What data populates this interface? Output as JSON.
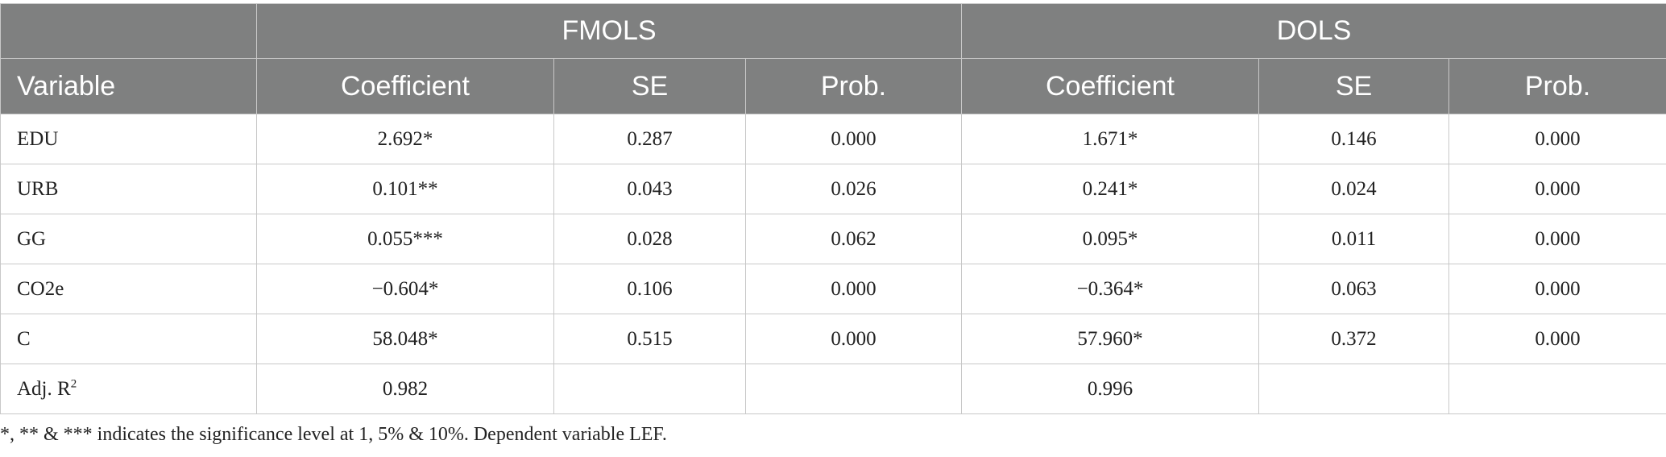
{
  "table": {
    "groups": [
      {
        "label": ""
      },
      {
        "label": "FMOLS"
      },
      {
        "label": "DOLS"
      }
    ],
    "columns": [
      "Variable",
      "Coefficient",
      "SE",
      "Prob.",
      "Coefficient",
      "SE",
      "Prob."
    ],
    "rows": [
      [
        "EDU",
        "2.692*",
        "0.287",
        "0.000",
        "1.671*",
        "0.146",
        "0.000"
      ],
      [
        "URB",
        "0.101**",
        "0.043",
        "0.026",
        "0.241*",
        "0.024",
        "0.000"
      ],
      [
        "GG",
        "0.055***",
        "0.028",
        "0.062",
        "0.095*",
        "0.011",
        "0.000"
      ],
      [
        "CO2e",
        "−0.604*",
        "0.106",
        "0.000",
        "−0.364*",
        "0.063",
        "0.000"
      ],
      [
        "C",
        "58.048*",
        "0.515",
        "0.000",
        "57.960*",
        "0.372",
        "0.000"
      ]
    ],
    "adj_row": {
      "label_base": "Adj. R",
      "label_sup": "2",
      "cells": [
        "0.982",
        "",
        "",
        "0.996",
        "",
        ""
      ]
    }
  },
  "footnote": "*, ** & *** indicates the significance level at 1, 5% & 10%. Dependent variable LEF.",
  "colors": {
    "header_bg": "#7f8080",
    "header_text": "#ffffff",
    "border": "#c8c8c8"
  }
}
